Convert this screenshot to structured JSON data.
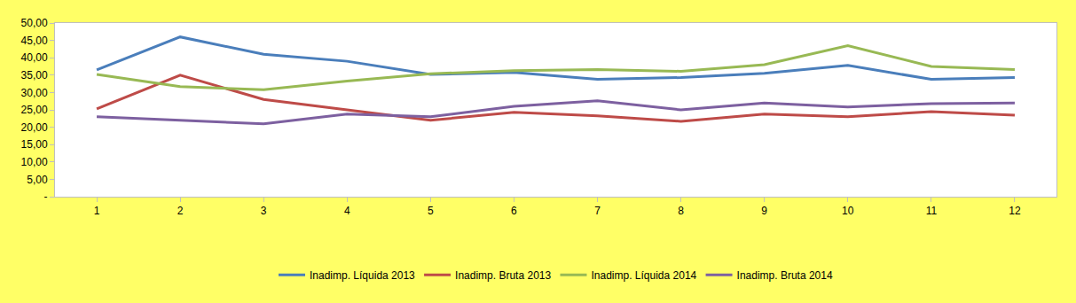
{
  "chart_data": {
    "type": "line",
    "categories": [
      "1",
      "2",
      "3",
      "4",
      "5",
      "6",
      "7",
      "8",
      "9",
      "10",
      "11",
      "12"
    ],
    "series": [
      {
        "name": "Inadimp. Líquida 2013",
        "color": "#4a7ebb",
        "values": [
          36.5,
          46.0,
          41.0,
          39.0,
          35.2,
          35.8,
          33.8,
          34.3,
          35.5,
          37.8,
          33.8,
          34.3
        ]
      },
      {
        "name": "Inadimp. Bruta 2013",
        "color": "#be4b48",
        "values": [
          25.3,
          35.0,
          28.0,
          25.0,
          22.0,
          24.3,
          23.3,
          21.7,
          23.8,
          23.0,
          24.5,
          23.5
        ]
      },
      {
        "name": "Inadimp. Líquida 2014",
        "color": "#98b954",
        "values": [
          35.2,
          31.7,
          30.8,
          33.3,
          35.4,
          36.3,
          36.6,
          36.1,
          38.0,
          43.5,
          37.5,
          36.6
        ]
      },
      {
        "name": "Inadimp. Bruta 2014",
        "color": "#7d60a0",
        "values": [
          23.0,
          22.0,
          21.0,
          23.8,
          23.0,
          26.0,
          27.6,
          25.0,
          27.0,
          25.8,
          26.8,
          27.0
        ]
      }
    ],
    "ylim": [
      0,
      50
    ],
    "yticks": [
      {
        "value": 0,
        "label": "-"
      },
      {
        "value": 5,
        "label": "5,00"
      },
      {
        "value": 10,
        "label": "10,00"
      },
      {
        "value": 15,
        "label": "15,00"
      },
      {
        "value": 20,
        "label": "20,00"
      },
      {
        "value": 25,
        "label": "25,00"
      },
      {
        "value": 30,
        "label": "30,00"
      },
      {
        "value": 35,
        "label": "35,00"
      },
      {
        "value": 40,
        "label": "40,00"
      },
      {
        "value": 45,
        "label": "45,00"
      },
      {
        "value": 50,
        "label": "50,00"
      }
    ],
    "grid": false,
    "legend": "bottom"
  }
}
